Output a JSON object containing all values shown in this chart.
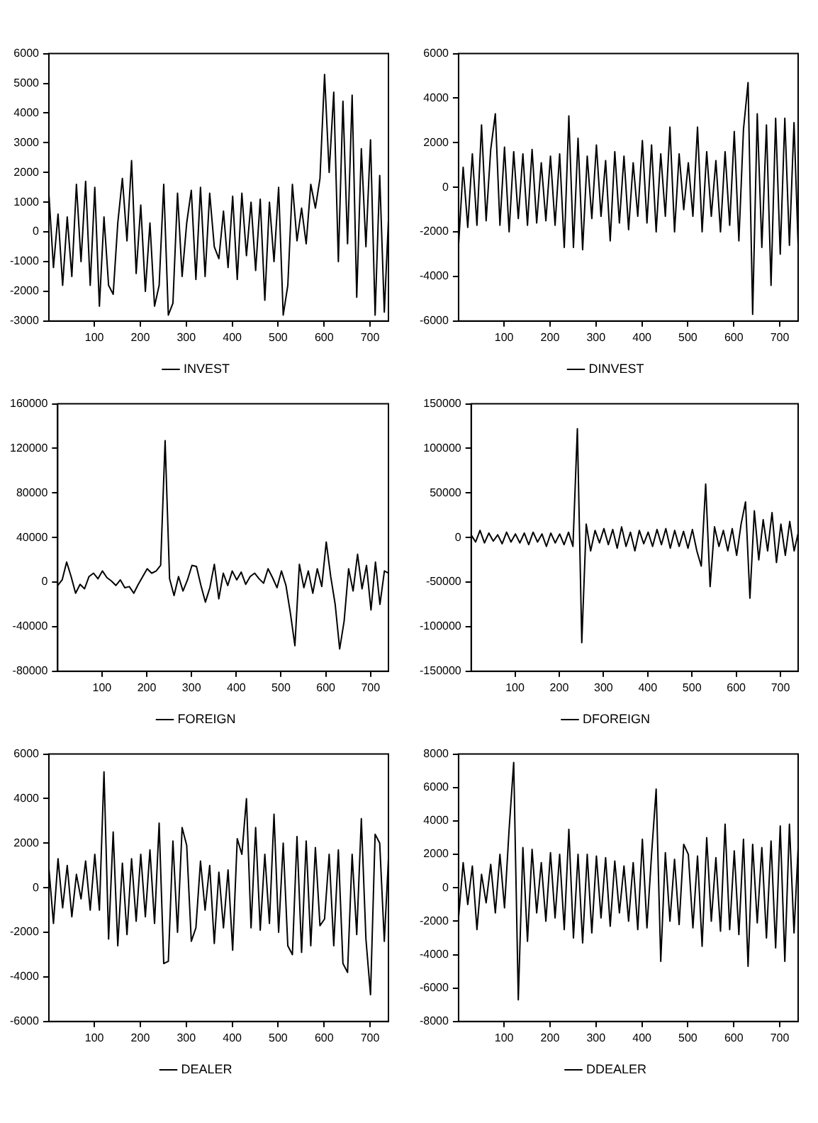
{
  "chart_data": [
    {
      "type": "line",
      "x": [
        1,
        11,
        21,
        31,
        41,
        51,
        61,
        71,
        81,
        91,
        101,
        111,
        121,
        131,
        141,
        151,
        161,
        171,
        181,
        191,
        201,
        211,
        221,
        231,
        241,
        251,
        261,
        271,
        281,
        291,
        301,
        311,
        321,
        331,
        341,
        351,
        361,
        371,
        381,
        391,
        401,
        411,
        421,
        431,
        441,
        451,
        461,
        471,
        481,
        491,
        501,
        511,
        521,
        531,
        541,
        551,
        561,
        571,
        581,
        591,
        601,
        611,
        621,
        631,
        641,
        651,
        661,
        671,
        681,
        691,
        701,
        711,
        721,
        731,
        740
      ],
      "series": [
        {
          "name": "INVEST",
          "color": "#000000",
          "values": [
            1300,
            -1200,
            600,
            -1800,
            500,
            -1500,
            1600,
            -1000,
            1700,
            -1800,
            1500,
            -2500,
            500,
            -1800,
            -2100,
            300,
            1800,
            -300,
            2400,
            -1400,
            900,
            -2000,
            300,
            -2500,
            -1800,
            1600,
            -2800,
            -2400,
            1300,
            -1500,
            300,
            1400,
            -1600,
            1500,
            -1500,
            1300,
            -500,
            -900,
            700,
            -1200,
            1200,
            -1600,
            1300,
            -800,
            1000,
            -1300,
            1100,
            -2300,
            1000,
            -1000,
            1500,
            -2800,
            -1800,
            1600,
            -300,
            800,
            -400,
            1600,
            800,
            1800,
            5300,
            2000,
            4700,
            -1000,
            4400,
            -400,
            4600,
            -2200,
            2800,
            -500,
            3100,
            -2800,
            1900,
            -2700,
            400
          ]
        }
      ],
      "xlim": [
        1,
        740
      ],
      "xticks": [
        100,
        200,
        300,
        400,
        500,
        600,
        700
      ],
      "ylim": [
        -3000,
        6000
      ],
      "yticks": [
        -3000,
        -2000,
        -1000,
        0,
        1000,
        2000,
        3000,
        4000,
        5000,
        6000
      ],
      "legend": "bottom",
      "grid": false,
      "marker": "none",
      "line_style": "solid"
    },
    {
      "type": "line",
      "x": [
        1,
        11,
        21,
        31,
        41,
        51,
        61,
        71,
        81,
        91,
        101,
        111,
        121,
        131,
        141,
        151,
        161,
        171,
        181,
        191,
        201,
        211,
        221,
        231,
        241,
        251,
        261,
        271,
        281,
        291,
        301,
        311,
        321,
        331,
        341,
        351,
        361,
        371,
        381,
        391,
        401,
        411,
        421,
        431,
        441,
        451,
        461,
        471,
        481,
        491,
        501,
        511,
        521,
        531,
        541,
        551,
        561,
        571,
        581,
        591,
        601,
        611,
        621,
        631,
        641,
        651,
        661,
        671,
        681,
        691,
        701,
        711,
        721,
        731,
        740
      ],
      "series": [
        {
          "name": "DINVEST",
          "color": "#000000",
          "values": [
            -2600,
            900,
            -1800,
            1500,
            -1700,
            2800,
            -1500,
            1700,
            3300,
            -1700,
            1800,
            -2000,
            1600,
            -1400,
            1500,
            -1700,
            1700,
            -1600,
            1100,
            -1500,
            1400,
            -1700,
            1500,
            -2700,
            3200,
            -2700,
            2200,
            -2800,
            1400,
            -1400,
            1900,
            -1300,
            1200,
            -2400,
            1600,
            -1600,
            1400,
            -1900,
            1100,
            -1300,
            2100,
            -1600,
            1900,
            -2000,
            1500,
            -1300,
            2700,
            -2000,
            1500,
            -1000,
            1100,
            -1300,
            2700,
            -2000,
            1600,
            -1300,
            1200,
            -2000,
            1600,
            -1700,
            2500,
            -2400,
            2600,
            4700,
            -5700,
            3300,
            -2700,
            2800,
            -4400,
            3100,
            -3000,
            3100,
            -2600,
            2900,
            -2600
          ]
        }
      ],
      "xlim": [
        1,
        740
      ],
      "xticks": [
        100,
        200,
        300,
        400,
        500,
        600,
        700
      ],
      "ylim": [
        -6000,
        6000
      ],
      "yticks": [
        -6000,
        -4000,
        -2000,
        0,
        2000,
        4000,
        6000
      ],
      "legend": "bottom",
      "grid": false,
      "marker": "none",
      "line_style": "solid"
    },
    {
      "type": "line",
      "x": [
        1,
        11,
        21,
        31,
        41,
        51,
        61,
        71,
        81,
        91,
        101,
        111,
        121,
        131,
        141,
        151,
        161,
        171,
        181,
        191,
        201,
        211,
        221,
        231,
        241,
        251,
        261,
        271,
        281,
        291,
        301,
        311,
        321,
        331,
        341,
        351,
        361,
        371,
        381,
        391,
        401,
        411,
        421,
        431,
        441,
        451,
        461,
        471,
        481,
        491,
        501,
        511,
        521,
        531,
        541,
        551,
        561,
        571,
        581,
        591,
        601,
        611,
        621,
        631,
        641,
        651,
        661,
        671,
        681,
        691,
        701,
        711,
        721,
        731,
        740
      ],
      "series": [
        {
          "name": "FOREIGN",
          "color": "#000000",
          "values": [
            -3000,
            2000,
            18000,
            5000,
            -10000,
            -2000,
            -6000,
            5000,
            8000,
            3000,
            10000,
            4000,
            1000,
            -3000,
            2000,
            -5000,
            -4000,
            -10000,
            -2000,
            5000,
            12000,
            8000,
            10000,
            15000,
            127000,
            3000,
            -12000,
            5000,
            -8000,
            2000,
            15000,
            14000,
            -3000,
            -18000,
            -5000,
            16000,
            -15000,
            8000,
            -3000,
            10000,
            2000,
            9000,
            -2000,
            5000,
            8000,
            3000,
            -1000,
            12000,
            4000,
            -5000,
            10000,
            -3000,
            -28000,
            -57000,
            16000,
            -5000,
            10000,
            -10000,
            12000,
            -4000,
            36000,
            5000,
            -20000,
            -60000,
            -35000,
            12000,
            -8000,
            25000,
            -6000,
            15000,
            -25000,
            18000,
            -20000,
            10000,
            8000
          ]
        }
      ],
      "xlim": [
        1,
        740
      ],
      "xticks": [
        100,
        200,
        300,
        400,
        500,
        600,
        700
      ],
      "ylim": [
        -80000,
        160000
      ],
      "yticks": [
        -80000,
        -40000,
        0,
        40000,
        80000,
        120000,
        160000
      ],
      "legend": "bottom",
      "grid": false,
      "marker": "none",
      "line_style": "solid"
    },
    {
      "type": "line",
      "x": [
        1,
        11,
        21,
        31,
        41,
        51,
        61,
        71,
        81,
        91,
        101,
        111,
        121,
        131,
        141,
        151,
        161,
        171,
        181,
        191,
        201,
        211,
        221,
        231,
        241,
        251,
        261,
        271,
        281,
        291,
        301,
        311,
        321,
        331,
        341,
        351,
        361,
        371,
        381,
        391,
        401,
        411,
        421,
        431,
        441,
        451,
        461,
        471,
        481,
        491,
        501,
        511,
        521,
        531,
        541,
        551,
        561,
        571,
        581,
        591,
        601,
        611,
        621,
        631,
        641,
        651,
        661,
        671,
        681,
        691,
        701,
        711,
        721,
        731,
        740
      ],
      "series": [
        {
          "name": "DFOREIGN",
          "color": "#000000",
          "values": [
            3000,
            -5000,
            8000,
            -6000,
            5000,
            -4000,
            3000,
            -7000,
            6000,
            -5000,
            4000,
            -6000,
            5000,
            -8000,
            6000,
            -5000,
            4000,
            -10000,
            5000,
            -6000,
            4000,
            -8000,
            6000,
            -10000,
            122000,
            -118000,
            15000,
            -15000,
            8000,
            -6000,
            10000,
            -8000,
            9000,
            -12000,
            12000,
            -10000,
            6000,
            -15000,
            8000,
            -7000,
            6000,
            -10000,
            9000,
            -8000,
            10000,
            -12000,
            8000,
            -10000,
            7000,
            -12000,
            9000,
            -15000,
            -32000,
            60000,
            -55000,
            12000,
            -10000,
            8000,
            -15000,
            10000,
            -20000,
            15000,
            40000,
            -68000,
            30000,
            -25000,
            20000,
            -15000,
            28000,
            -28000,
            15000,
            -20000,
            18000,
            -15000,
            5000
          ]
        }
      ],
      "xlim": [
        1,
        740
      ],
      "xticks": [
        100,
        200,
        300,
        400,
        500,
        600,
        700
      ],
      "ylim": [
        -150000,
        150000
      ],
      "yticks": [
        -150000,
        -100000,
        -50000,
        0,
        50000,
        100000,
        150000
      ],
      "legend": "bottom",
      "grid": false,
      "marker": "none",
      "line_style": "solid"
    },
    {
      "type": "line",
      "x": [
        1,
        11,
        21,
        31,
        41,
        51,
        61,
        71,
        81,
        91,
        101,
        111,
        121,
        131,
        141,
        151,
        161,
        171,
        181,
        191,
        201,
        211,
        221,
        231,
        241,
        251,
        261,
        271,
        281,
        291,
        301,
        311,
        321,
        331,
        341,
        351,
        361,
        371,
        381,
        391,
        401,
        411,
        421,
        431,
        441,
        451,
        461,
        471,
        481,
        491,
        501,
        511,
        521,
        531,
        541,
        551,
        561,
        571,
        581,
        591,
        601,
        611,
        621,
        631,
        641,
        651,
        661,
        671,
        681,
        691,
        701,
        711,
        721,
        731,
        740
      ],
      "series": [
        {
          "name": "DEALER",
          "color": "#000000",
          "values": [
            900,
            -1600,
            1300,
            -900,
            1000,
            -1300,
            600,
            -500,
            1200,
            -1000,
            1500,
            -1000,
            5200,
            -2300,
            2500,
            -2600,
            1100,
            -2100,
            1300,
            -1500,
            1500,
            -1300,
            1700,
            -1600,
            2900,
            -3400,
            -3300,
            2100,
            -2000,
            2700,
            1900,
            -2400,
            -1800,
            1200,
            -1000,
            1000,
            -2500,
            700,
            -1800,
            800,
            -2800,
            2200,
            1500,
            4000,
            -1800,
            2700,
            -1900,
            1500,
            -1600,
            3300,
            -2000,
            2000,
            -2600,
            -3000,
            2300,
            -2900,
            2100,
            -2600,
            1800,
            -1700,
            -1400,
            1500,
            -2600,
            1700,
            -3400,
            -3800,
            1500,
            -2100,
            3100,
            -2300,
            -4800,
            2400,
            2000,
            -2400,
            1300
          ]
        }
      ],
      "xlim": [
        1,
        740
      ],
      "xticks": [
        100,
        200,
        300,
        400,
        500,
        600,
        700
      ],
      "ylim": [
        -6000,
        6000
      ],
      "yticks": [
        -6000,
        -4000,
        -2000,
        0,
        2000,
        4000,
        6000
      ],
      "legend": "bottom",
      "grid": false,
      "marker": "none",
      "line_style": "solid"
    },
    {
      "type": "line",
      "x": [
        1,
        11,
        21,
        31,
        41,
        51,
        61,
        71,
        81,
        91,
        101,
        111,
        121,
        131,
        141,
        151,
        161,
        171,
        181,
        191,
        201,
        211,
        221,
        231,
        241,
        251,
        261,
        271,
        281,
        291,
        301,
        311,
        321,
        331,
        341,
        351,
        361,
        371,
        381,
        391,
        401,
        411,
        421,
        431,
        441,
        451,
        461,
        471,
        481,
        491,
        501,
        511,
        521,
        531,
        541,
        551,
        561,
        571,
        581,
        591,
        601,
        611,
        621,
        631,
        641,
        651,
        661,
        671,
        681,
        691,
        701,
        711,
        721,
        731,
        740
      ],
      "series": [
        {
          "name": "DDEALER",
          "color": "#000000",
          "values": [
            -1800,
            1500,
            -1000,
            1300,
            -2500,
            800,
            -900,
            1400,
            -1500,
            2000,
            -1200,
            3500,
            7500,
            -6700,
            2400,
            -3200,
            2300,
            -1500,
            1500,
            -2000,
            2100,
            -1800,
            2000,
            -2500,
            3500,
            -3000,
            2000,
            -3300,
            2000,
            -2700,
            1900,
            -1800,
            1800,
            -2300,
            1600,
            -1500,
            1300,
            -2000,
            1500,
            -2500,
            2900,
            -2400,
            2000,
            5900,
            -4400,
            2100,
            -2000,
            1700,
            -2200,
            2600,
            2000,
            -2400,
            1900,
            -3500,
            3000,
            -2000,
            1800,
            -2600,
            3800,
            -2500,
            2200,
            -2800,
            2900,
            -4700,
            2600,
            -2100,
            2400,
            -3000,
            2800,
            -3600,
            3700,
            -4400,
            3800,
            -2700,
            2400
          ]
        }
      ],
      "xlim": [
        1,
        740
      ],
      "xticks": [
        100,
        200,
        300,
        400,
        500,
        600,
        700
      ],
      "ylim": [
        -8000,
        8000
      ],
      "yticks": [
        -8000,
        -6000,
        -4000,
        -2000,
        0,
        2000,
        4000,
        6000,
        8000
      ],
      "legend": "bottom",
      "grid": false,
      "marker": "none",
      "line_style": "solid"
    }
  ]
}
